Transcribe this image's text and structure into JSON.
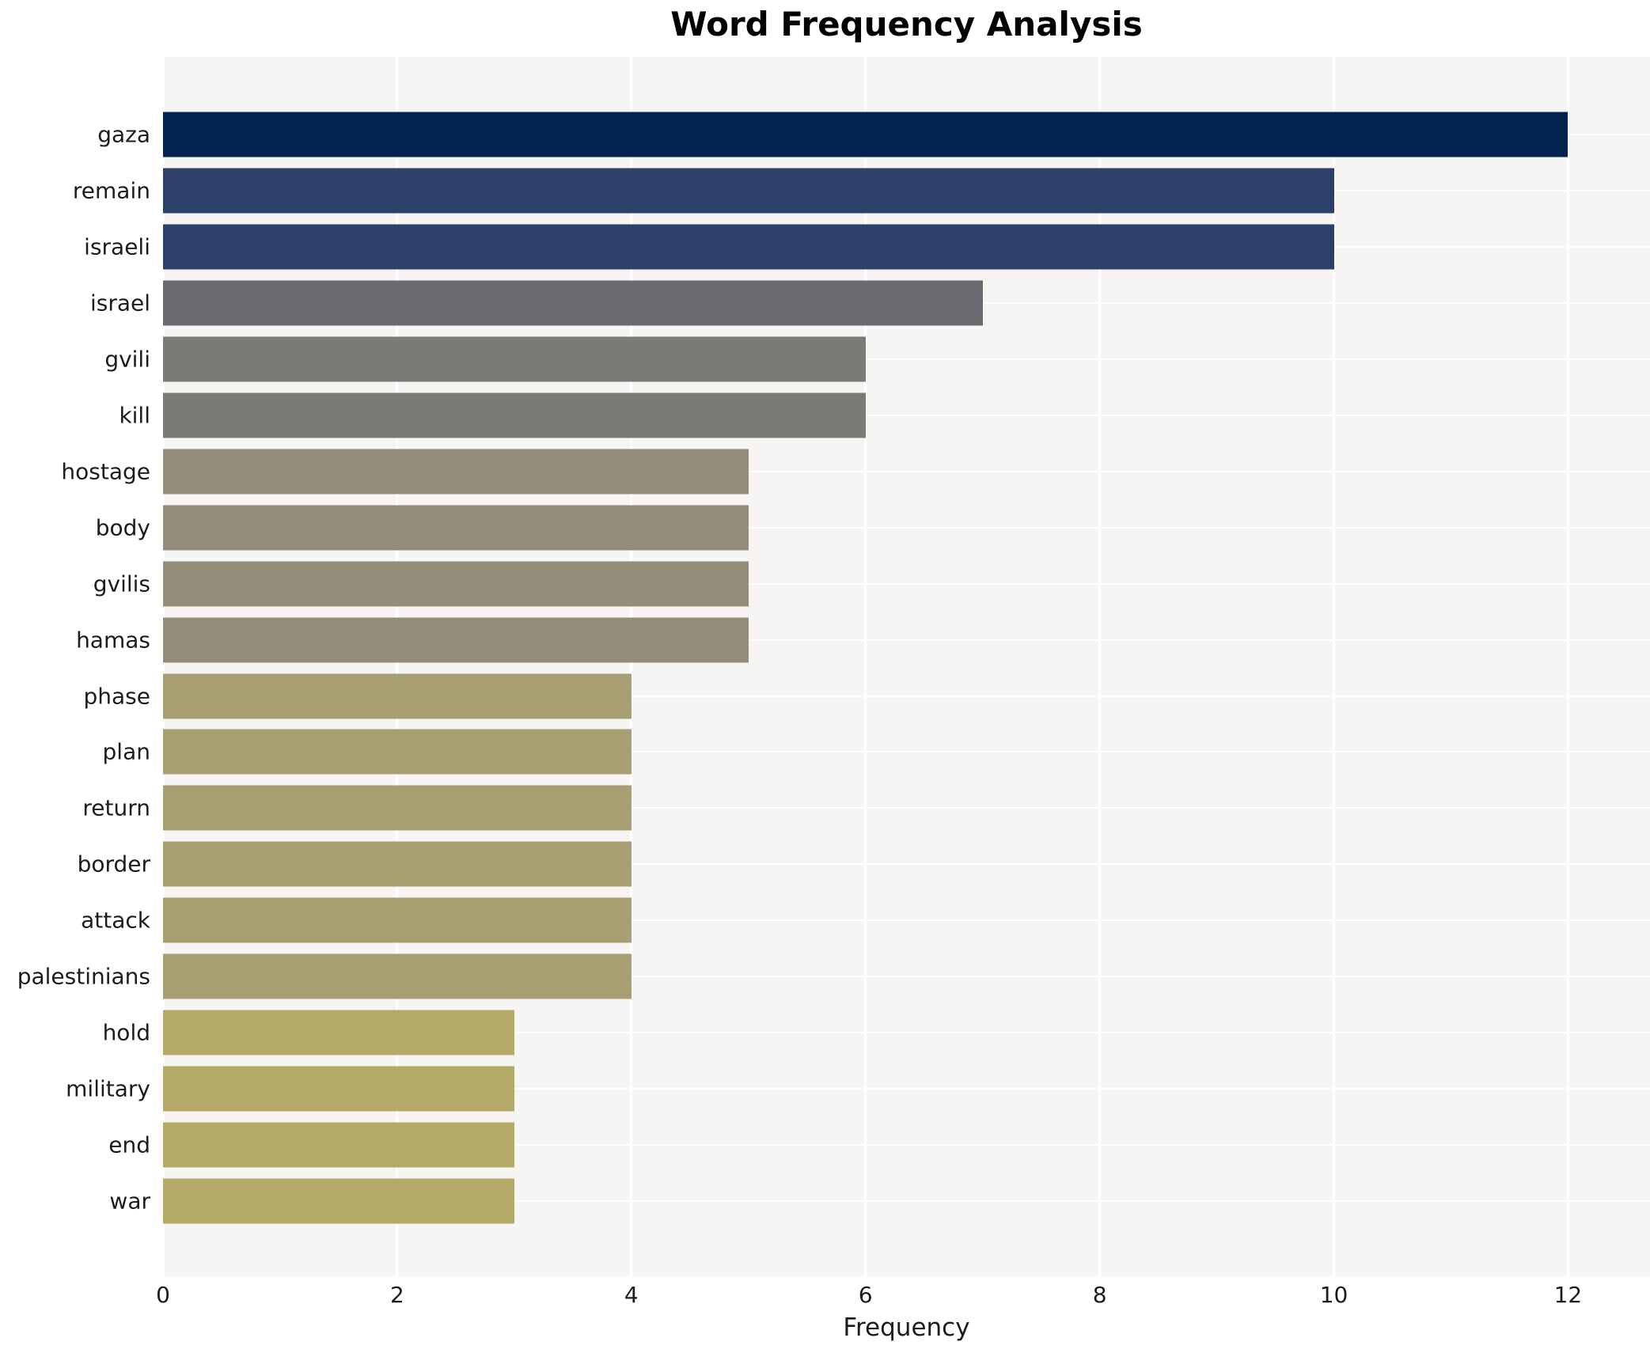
{
  "chart_data": {
    "type": "bar",
    "orientation": "horizontal",
    "title": "Word Frequency Analysis",
    "xlabel": "Frequency",
    "ylabel": "",
    "categories": [
      "gaza",
      "remain",
      "israeli",
      "israel",
      "gvili",
      "kill",
      "hostage",
      "body",
      "gvilis",
      "hamas",
      "phase",
      "plan",
      "return",
      "border",
      "attack",
      "palestinians",
      "hold",
      "military",
      "end",
      "war"
    ],
    "values": [
      12,
      10,
      10,
      7,
      6,
      6,
      5,
      5,
      5,
      5,
      4,
      4,
      4,
      4,
      4,
      4,
      3,
      3,
      3,
      3
    ],
    "bar_colors": [
      "#03234f",
      "#2d4069",
      "#2d4069",
      "#696a70",
      "#7b7b76",
      "#7b7b76",
      "#948d79",
      "#948d79",
      "#948d79",
      "#948d79",
      "#a79e72",
      "#a79e72",
      "#a79e72",
      "#a79e72",
      "#a79e72",
      "#a79e72",
      "#b5a968",
      "#b5a968",
      "#b5a968",
      "#b5a968"
    ],
    "xticks": [
      0,
      2,
      4,
      6,
      8,
      10,
      12
    ],
    "xlim": [
      0,
      12.7
    ],
    "grid": true,
    "legend": false,
    "colors": {
      "plot_bg": "#f6f5f4",
      "grid_color": "#ffffff",
      "text_color": "#1c1c1c",
      "title_color": "#000000"
    }
  }
}
